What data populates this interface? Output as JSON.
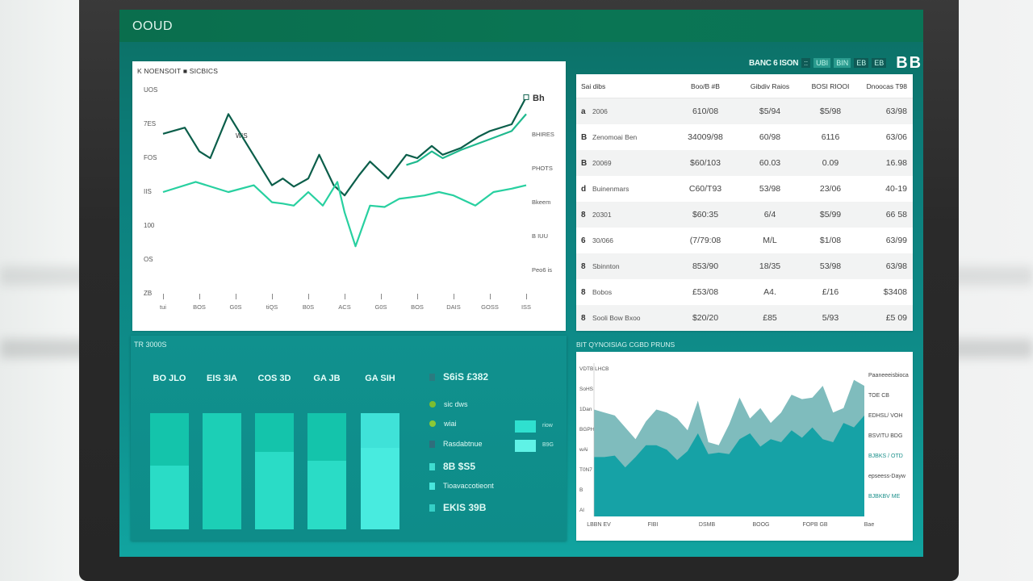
{
  "app": {
    "title": "OOUD"
  },
  "header_legend": {
    "text": "BANC 6 ISON",
    "chips": [
      "::",
      "UBI",
      "BIN",
      "EB",
      "EB"
    ],
    "big": "BB"
  },
  "line_panel": {
    "title": "K NOENSOIT ■ SICBICS",
    "inline_label": "WiS",
    "end_label": "Bh"
  },
  "table": {
    "headers": [
      "Sai dibs",
      "Boo/B #B",
      "Gibdiv Raios",
      "BOSI RIOOI",
      "Dnoocas T98"
    ],
    "rows": [
      {
        "icon": "a",
        "name": "2006",
        "c1": "610/08",
        "c2": "$5/94",
        "c3": "$5/98",
        "c4": "63/98"
      },
      {
        "icon": "B",
        "name": "Zenomoai Ben",
        "c1": "34009/98",
        "c2": "60/98",
        "c3": "6116",
        "c4": "63/06"
      },
      {
        "icon": "B",
        "name": "20069",
        "c1": "$60/103",
        "c2": "60.03",
        "c3": "0.09",
        "c4": "16.98"
      },
      {
        "icon": "d",
        "name": "Buinenmars",
        "c1": "C60/T93",
        "c2": "53/98",
        "c3": "23/06",
        "c4": "40-19"
      },
      {
        "icon": "8",
        "name": "20301",
        "c1": "$60:35",
        "c2": "6/4",
        "c3": "$5/99",
        "c4": "66 58"
      },
      {
        "icon": "6",
        "name": "30/066",
        "c1": "(7/79:08",
        "c2": "M/L",
        "c3": "$1/08",
        "c4": "63/99"
      },
      {
        "icon": "8",
        "name": "Sbinnton",
        "c1": "853/90",
        "c2": "18/35",
        "c3": "53/98",
        "c4": "63/98"
      },
      {
        "icon": "8",
        "name": "Bobos",
        "c1": "£53/08",
        "c2": "A4.",
        "c3": "£/16",
        "c4": "$3408"
      },
      {
        "icon": "8",
        "name": "Sooli Bow Bxoo",
        "c1": "$20/20",
        "c2": "£85",
        "c3": "5/93",
        "c4": "£5 09"
      }
    ]
  },
  "bar_panel": {
    "title": "TR 3000S",
    "labels": [
      "BO JLO",
      "EIS 3IA",
      "COS 3D",
      "GA JB",
      "GA SIH"
    ],
    "legend_items": [
      {
        "shape": "dot",
        "color": "#7dbd2f",
        "label": "sic dws",
        "big": false
      },
      {
        "shape": "dot",
        "color": "#8ac936",
        "label": "wiai",
        "big": false
      },
      {
        "shape": "sq",
        "color": "#2f6e7c",
        "label": "Rasdabtnue",
        "big": false
      },
      {
        "shape": "sq",
        "color": "#3fdcd0",
        "label": "8B $S5",
        "big": true
      },
      {
        "shape": "sq",
        "color": "#48e6dc",
        "label": "Tioavaccotieont",
        "big": false
      },
      {
        "shape": "sq",
        "color": "#35cfc6",
        "label": "EKIS 39B",
        "big": true
      }
    ],
    "legend_header": "S6iS £382",
    "swatch_labels": [
      "riow",
      "B9G"
    ]
  },
  "area_panel": {
    "title": "BIT QYNOISIAG CGBD PRUNS",
    "right_labels": [
      "Paaneeeisbioca",
      "TOE CB",
      "EDHSL/ VOH",
      "BSVITU BDG",
      "BJBKS / OTD",
      "epseess-Dayw",
      "BJBKBV ME"
    ]
  },
  "chart_data": [
    {
      "type": "line",
      "title": "K NOENSOIT ■ SICBICS",
      "xlabel": "",
      "ylabel": "",
      "x_tick_labels": [
        "tui",
        "BOS",
        "G0S",
        "tiQS",
        "B0S",
        "ACS",
        "G0S",
        "BOS",
        "DAIS",
        "GOSS",
        "ISS"
      ],
      "y_tick_labels": [
        "UOS",
        "7ES",
        "FOS",
        "IIS",
        "100",
        "OS",
        "ZB"
      ],
      "y_tick_approx_values": [
        300,
        250,
        200,
        150,
        100,
        50,
        0
      ],
      "ylim": [
        0,
        300
      ],
      "right_axis_labels": [
        "Bh",
        "BHIRES",
        "PHOTS",
        "Bkeem",
        "B IUU",
        "Peo6 is"
      ],
      "grid": false,
      "series": [
        {
          "name": "dark-green",
          "color": "#0b5e4a",
          "x_index": [
            0,
            0.6,
            1,
            1.3,
            1.8,
            2.2,
            3,
            3.3,
            3.6,
            4,
            4.3,
            4.7,
            5,
            5.4,
            5.7,
            6.2,
            6.7,
            7,
            7.4,
            7.7,
            8.2,
            8.7,
            9,
            9.6,
            10
          ],
          "values": [
            236,
            245,
            210,
            200,
            265,
            230,
            160,
            170,
            158,
            170,
            205,
            160,
            145,
            175,
            195,
            170,
            205,
            200,
            218,
            205,
            215,
            232,
            240,
            250,
            290
          ]
        },
        {
          "name": "mid-green",
          "color": "#1fb98e",
          "x_index": [
            6.7,
            7,
            7.4,
            7.7,
            8.2,
            8.7,
            9,
            9.6,
            10
          ],
          "values": [
            190,
            195,
            210,
            200,
            212,
            222,
            228,
            240,
            265
          ]
        },
        {
          "name": "light-green",
          "color": "#28d0a0",
          "x_index": [
            0,
            0.9,
            1.8,
            2.5,
            3,
            3.3,
            3.6,
            4,
            4.4,
            4.8,
            5,
            5.3,
            5.7,
            6.1,
            6.5,
            7.2,
            7.6,
            8,
            8.6,
            9.1,
            9.6,
            10
          ],
          "values": [
            150,
            165,
            150,
            160,
            135,
            133,
            130,
            150,
            130,
            165,
            120,
            70,
            130,
            128,
            140,
            145,
            150,
            145,
            130,
            150,
            155,
            160
          ]
        }
      ]
    },
    {
      "type": "bar",
      "title": "TR 3000S",
      "categories": [
        "BO JLO",
        "EIS 3IA",
        "COS 3D",
        "GA JB",
        "GA SIH"
      ],
      "stacked": true,
      "series": [
        {
          "name": "lower",
          "color": "#2ad9c2",
          "values": [
            55,
            100,
            67,
            59,
            70
          ]
        },
        {
          "name": "upper",
          "color": "#18c6ae",
          "values": [
            45,
            0,
            33,
            41,
            30
          ]
        }
      ],
      "ylim": [
        0,
        100
      ]
    },
    {
      "type": "area",
      "title": "BIT QYNOISIAG CGBD PRUNS",
      "x_tick_labels": [
        "LBBN EV",
        "FIBI",
        "DSMB",
        "BOOG",
        "FOPB GB",
        "Bae"
      ],
      "y_tick_labels": [
        "VDTB LHCB",
        "SoHS",
        "1Dan",
        "BGPH",
        "wAi",
        "T0N7",
        "B",
        "Al"
      ],
      "right_labels": [
        "Paaneeeisbioca",
        "TOE CB",
        "EDHSL/ VOH",
        "BSVITU BDG",
        "BJBKS / OTD",
        "epseess-Dayw",
        "BJBKBV ME"
      ],
      "stacked": true,
      "series": [
        {
          "name": "upper",
          "color": "#7fbcbd",
          "values": [
            72,
            70,
            68,
            60,
            52,
            64,
            72,
            70,
            66,
            58,
            78,
            50,
            48,
            62,
            80,
            66,
            73,
            63,
            70,
            82,
            79,
            80,
            88,
            70,
            73,
            92,
            88
          ]
        },
        {
          "name": "lower",
          "color": "#16a2a6",
          "values": [
            40,
            40,
            41,
            33,
            40,
            48,
            48,
            45,
            38,
            44,
            56,
            42,
            43,
            42,
            52,
            56,
            47,
            52,
            50,
            58,
            53,
            60,
            52,
            50,
            63,
            60,
            68
          ]
        }
      ],
      "ylim": [
        0,
        100
      ]
    }
  ]
}
